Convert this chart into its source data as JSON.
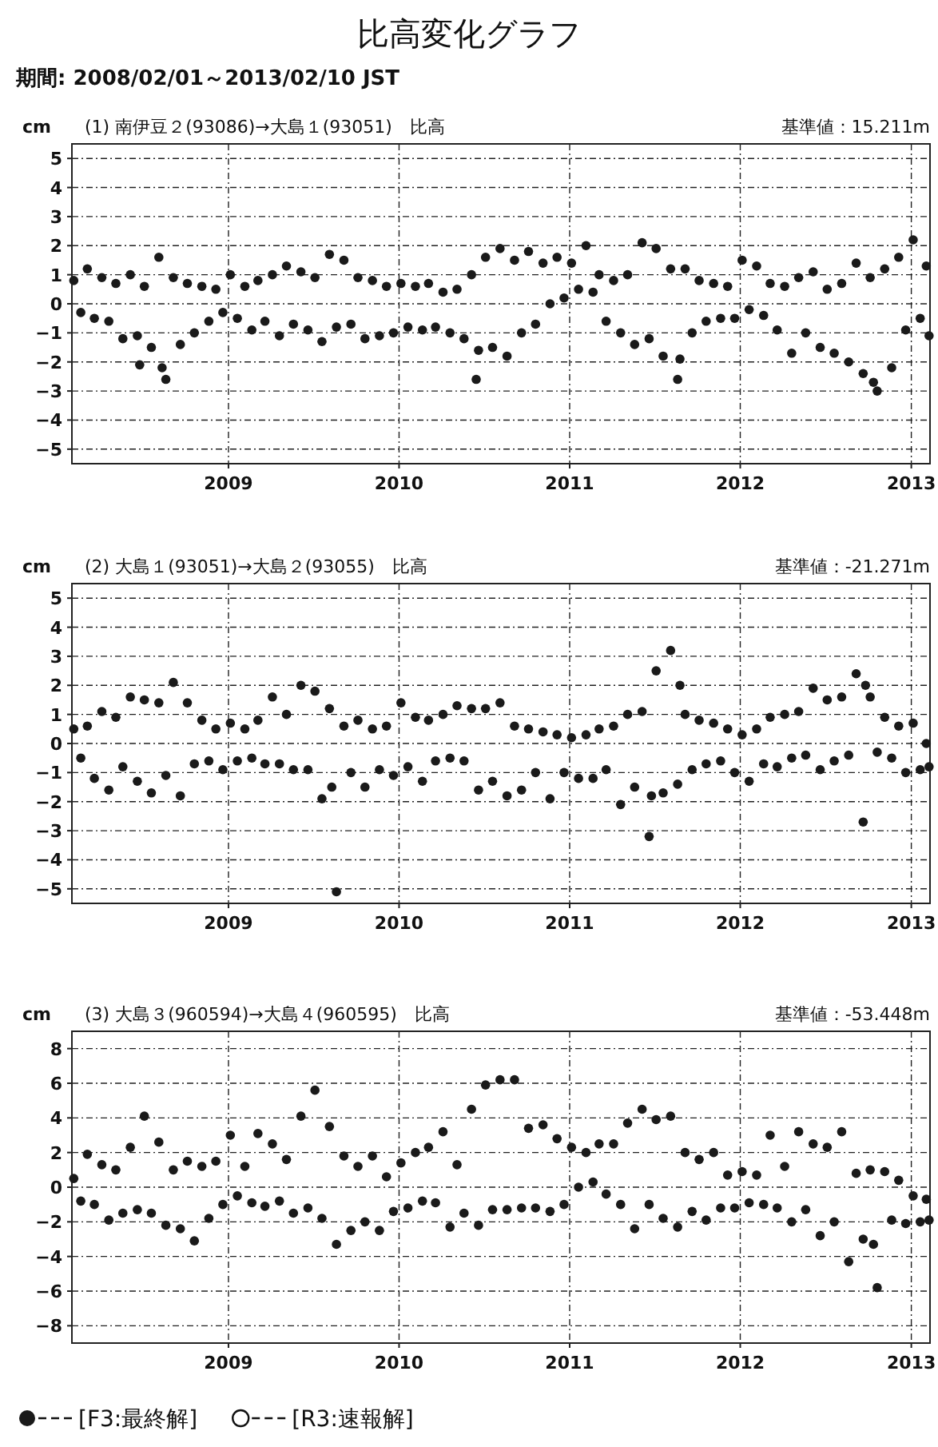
{
  "chart_data": [
    {
      "type": "scatter",
      "title": "比高変化グラフ",
      "subtitle": "期間: 2008/02/01～2013/02/10 JST",
      "ylabel": "cm",
      "annotations": [
        "(1) 南伊豆２(93086)→大島１(93051)　比高",
        "基準値：15.211m"
      ],
      "xlim": [
        "2008-02-01",
        "2013-02-10"
      ],
      "xticks": [
        {
          "value": "2009-01-01",
          "label": "2009"
        },
        {
          "value": "2010-01-01",
          "label": "2010"
        },
        {
          "value": "2011-01-01",
          "label": "2011"
        },
        {
          "value": "2012-01-01",
          "label": "2012"
        },
        {
          "value": "2013-01-01",
          "label": "2013"
        }
      ],
      "ylim": [
        -5.5,
        5.5
      ],
      "yticks": [
        -5,
        -4,
        -3,
        -2,
        -1,
        0,
        1,
        2,
        3,
        4,
        5
      ],
      "grid": true,
      "marker": "circle",
      "color": "#1a1a1a",
      "x": [
        "2008-02-05",
        "2008-02-20",
        "2008-03-05",
        "2008-03-20",
        "2008-04-05",
        "2008-04-20",
        "2008-05-05",
        "2008-05-20",
        "2008-06-05",
        "2008-06-20",
        "2008-06-25",
        "2008-07-05",
        "2008-07-20",
        "2008-08-05",
        "2008-08-12",
        "2008-08-20",
        "2008-09-05",
        "2008-09-20",
        "2008-10-05",
        "2008-10-20",
        "2008-11-05",
        "2008-11-20",
        "2008-12-05",
        "2008-12-20",
        "2009-01-05",
        "2009-01-20",
        "2009-02-05",
        "2009-02-20",
        "2009-03-05",
        "2009-03-20",
        "2009-04-05",
        "2009-04-20",
        "2009-05-05",
        "2009-05-20",
        "2009-06-05",
        "2009-06-20",
        "2009-07-05",
        "2009-07-20",
        "2009-08-05",
        "2009-08-20",
        "2009-09-05",
        "2009-09-20",
        "2009-10-05",
        "2009-10-20",
        "2009-11-05",
        "2009-11-20",
        "2009-12-05",
        "2009-12-20",
        "2010-01-05",
        "2010-01-20",
        "2010-02-05",
        "2010-02-20",
        "2010-03-05",
        "2010-03-20",
        "2010-04-05",
        "2010-04-20",
        "2010-05-05",
        "2010-05-20",
        "2010-06-05",
        "2010-06-15",
        "2010-06-20",
        "2010-07-05",
        "2010-07-20",
        "2010-08-05",
        "2010-08-20",
        "2010-09-05",
        "2010-09-20",
        "2010-10-05",
        "2010-10-20",
        "2010-11-05",
        "2010-11-20",
        "2010-12-05",
        "2010-12-20",
        "2011-01-05",
        "2011-01-20",
        "2011-02-05",
        "2011-02-20",
        "2011-03-05",
        "2011-03-20",
        "2011-04-05",
        "2011-04-20",
        "2011-05-05",
        "2011-05-20",
        "2011-06-05",
        "2011-06-20",
        "2011-07-05",
        "2011-07-20",
        "2011-08-05",
        "2011-08-20",
        "2011-08-25",
        "2011-09-05",
        "2011-09-20",
        "2011-10-05",
        "2011-10-20",
        "2011-11-05",
        "2011-11-20",
        "2011-12-05",
        "2011-12-20",
        "2012-01-05",
        "2012-01-20",
        "2012-02-05",
        "2012-02-20",
        "2012-03-05",
        "2012-03-20",
        "2012-04-05",
        "2012-04-20",
        "2012-05-05",
        "2012-05-20",
        "2012-06-05",
        "2012-06-20",
        "2012-07-05",
        "2012-07-20",
        "2012-08-05",
        "2012-08-20",
        "2012-09-05",
        "2012-09-20",
        "2012-10-05",
        "2012-10-12",
        "2012-10-20",
        "2012-11-05",
        "2012-11-20",
        "2012-12-05",
        "2012-12-20",
        "2013-01-05",
        "2013-01-20",
        "2013-02-02",
        "2013-02-08"
      ],
      "values": [
        0.8,
        -0.3,
        1.2,
        -0.5,
        0.9,
        -0.6,
        0.7,
        -1.2,
        1.0,
        -1.1,
        -2.1,
        0.6,
        -1.5,
        1.6,
        -2.2,
        -2.6,
        0.9,
        -1.4,
        0.7,
        -1.0,
        0.6,
        -0.6,
        0.5,
        -0.3,
        1.0,
        -0.5,
        0.6,
        -0.9,
        0.8,
        -0.6,
        1.0,
        -1.1,
        1.3,
        -0.7,
        1.1,
        -0.9,
        0.9,
        -1.3,
        1.7,
        -0.8,
        1.5,
        -0.7,
        0.9,
        -1.2,
        0.8,
        -1.1,
        0.6,
        -1.0,
        0.7,
        -0.8,
        0.6,
        -0.9,
        0.7,
        -0.8,
        0.4,
        -1.0,
        0.5,
        -1.2,
        1.0,
        -2.6,
        -1.6,
        1.6,
        -1.5,
        1.9,
        -1.8,
        1.5,
        -1.0,
        1.8,
        -0.7,
        1.4,
        0.0,
        1.6,
        0.2,
        1.4,
        0.5,
        2.0,
        0.4,
        1.0,
        -0.6,
        0.8,
        -1.0,
        1.0,
        -1.4,
        2.1,
        -1.2,
        1.9,
        -1.8,
        1.2,
        -2.6,
        -1.9,
        1.2,
        -1.0,
        0.8,
        -0.6,
        0.7,
        -0.5,
        0.6,
        -0.5,
        1.5,
        -0.2,
        1.3,
        -0.4,
        0.7,
        -0.9,
        0.6,
        -1.7,
        0.9,
        -1.0,
        1.1,
        -1.5,
        0.5,
        -1.7,
        0.7,
        -2.0,
        1.4,
        -2.4,
        0.9,
        -2.7,
        -3.0,
        1.2,
        -2.2,
        1.6,
        -0.9,
        2.2,
        -0.5,
        1.3,
        -1.1
      ]
    },
    {
      "type": "scatter",
      "ylabel": "cm",
      "annotations": [
        "(2) 大島１(93051)→大島２(93055)　比高",
        "基準値：-21.271m"
      ],
      "xlim": [
        "2008-02-01",
        "2013-02-10"
      ],
      "xticks": [
        {
          "value": "2009-01-01",
          "label": "2009"
        },
        {
          "value": "2010-01-01",
          "label": "2010"
        },
        {
          "value": "2011-01-01",
          "label": "2011"
        },
        {
          "value": "2012-01-01",
          "label": "2012"
        },
        {
          "value": "2013-01-01",
          "label": "2013"
        }
      ],
      "ylim": [
        -5.5,
        5.5
      ],
      "yticks": [
        -5,
        -4,
        -3,
        -2,
        -1,
        0,
        1,
        2,
        3,
        4,
        5
      ],
      "grid": true,
      "marker": "circle",
      "color": "#1a1a1a",
      "x": [
        "2008-02-05",
        "2008-02-20",
        "2008-03-05",
        "2008-03-20",
        "2008-04-05",
        "2008-04-20",
        "2008-05-05",
        "2008-05-20",
        "2008-06-05",
        "2008-06-20",
        "2008-07-05",
        "2008-07-20",
        "2008-08-05",
        "2008-08-20",
        "2008-09-05",
        "2008-09-20",
        "2008-10-05",
        "2008-10-20",
        "2008-11-05",
        "2008-11-20",
        "2008-12-05",
        "2008-12-20",
        "2009-01-05",
        "2009-01-20",
        "2009-02-05",
        "2009-02-20",
        "2009-03-05",
        "2009-03-20",
        "2009-04-05",
        "2009-04-20",
        "2009-05-05",
        "2009-05-20",
        "2009-06-05",
        "2009-06-20",
        "2009-07-05",
        "2009-07-20",
        "2009-08-05",
        "2009-08-10",
        "2009-08-20",
        "2009-09-05",
        "2009-09-20",
        "2009-10-05",
        "2009-10-20",
        "2009-11-05",
        "2009-11-20",
        "2009-12-05",
        "2009-12-20",
        "2010-01-05",
        "2010-01-20",
        "2010-02-05",
        "2010-02-20",
        "2010-03-05",
        "2010-03-20",
        "2010-04-05",
        "2010-04-20",
        "2010-05-05",
        "2010-05-20",
        "2010-06-05",
        "2010-06-20",
        "2010-07-05",
        "2010-07-20",
        "2010-08-05",
        "2010-08-20",
        "2010-09-05",
        "2010-09-20",
        "2010-10-05",
        "2010-10-20",
        "2010-11-05",
        "2010-11-20",
        "2010-12-05",
        "2010-12-20",
        "2011-01-05",
        "2011-01-20",
        "2011-02-05",
        "2011-02-20",
        "2011-03-05",
        "2011-03-20",
        "2011-04-05",
        "2011-04-20",
        "2011-05-05",
        "2011-05-20",
        "2011-06-05",
        "2011-06-20",
        "2011-06-25",
        "2011-07-05",
        "2011-07-20",
        "2011-08-05",
        "2011-08-20",
        "2011-08-25",
        "2011-09-05",
        "2011-09-20",
        "2011-10-05",
        "2011-10-20",
        "2011-11-05",
        "2011-11-20",
        "2011-12-05",
        "2011-12-20",
        "2012-01-05",
        "2012-01-20",
        "2012-02-05",
        "2012-02-20",
        "2012-03-05",
        "2012-03-20",
        "2012-04-05",
        "2012-04-20",
        "2012-05-05",
        "2012-05-20",
        "2012-06-05",
        "2012-06-20",
        "2012-07-05",
        "2012-07-20",
        "2012-08-05",
        "2012-08-20",
        "2012-09-05",
        "2012-09-20",
        "2012-09-25",
        "2012-10-05",
        "2012-10-20",
        "2012-11-05",
        "2012-11-20",
        "2012-12-05",
        "2012-12-20",
        "2013-01-05",
        "2013-01-20",
        "2013-02-02",
        "2013-02-08"
      ],
      "values": [
        0.5,
        -0.5,
        0.6,
        -1.2,
        1.1,
        -1.6,
        0.9,
        -0.8,
        1.6,
        -1.3,
        1.5,
        -1.7,
        1.4,
        -1.1,
        2.1,
        -1.8,
        1.4,
        -0.7,
        0.8,
        -0.6,
        0.5,
        -0.9,
        0.7,
        -0.6,
        0.5,
        -0.5,
        0.8,
        -0.7,
        1.6,
        -0.7,
        1.0,
        -0.9,
        2.0,
        -0.9,
        1.8,
        -1.9,
        1.2,
        -1.5,
        -5.1,
        0.6,
        -1.0,
        0.8,
        -1.5,
        0.5,
        -0.9,
        0.6,
        -1.1,
        1.4,
        -0.8,
        0.9,
        -1.3,
        0.8,
        -0.6,
        1.0,
        -0.5,
        1.3,
        -0.6,
        1.2,
        -1.6,
        1.2,
        -1.3,
        1.4,
        -1.8,
        0.6,
        -1.6,
        0.5,
        -1.0,
        0.4,
        -1.9,
        0.3,
        -1.0,
        0.2,
        -1.2,
        0.3,
        -1.2,
        0.5,
        -0.9,
        0.6,
        -2.1,
        1.0,
        -1.5,
        1.1,
        -3.2,
        -1.8,
        2.5,
        -1.7,
        3.2,
        -1.4,
        2.0,
        1.0,
        -0.9,
        0.8,
        -0.7,
        0.7,
        -0.6,
        0.5,
        -1.0,
        0.3,
        -1.3,
        0.5,
        -0.7,
        0.9,
        -0.8,
        1.0,
        -0.5,
        1.1,
        -0.4,
        1.9,
        -0.9,
        1.5,
        -0.6,
        1.6,
        -0.4,
        2.4,
        -2.7,
        2.0,
        1.6,
        -0.3,
        0.9,
        -0.5,
        0.6,
        -1.0,
        0.7,
        -0.9,
        0.0,
        -0.8
      ]
    },
    {
      "type": "scatter",
      "ylabel": "cm",
      "annotations": [
        "(3) 大島３(960594)→大島４(960595)　比高",
        "基準値：-53.448m"
      ],
      "xlim": [
        "2008-02-01",
        "2013-02-10"
      ],
      "xticks": [
        {
          "value": "2009-01-01",
          "label": "2009"
        },
        {
          "value": "2010-01-01",
          "label": "2010"
        },
        {
          "value": "2011-01-01",
          "label": "2011"
        },
        {
          "value": "2012-01-01",
          "label": "2012"
        },
        {
          "value": "2013-01-01",
          "label": "2013"
        }
      ],
      "ylim": [
        -9,
        9
      ],
      "yticks": [
        -8,
        -6,
        -4,
        -2,
        0,
        2,
        4,
        6,
        8
      ],
      "grid": true,
      "marker": "circle",
      "legend": "bottom",
      "series": [
        {
          "name": "[F3:最終解]",
          "color": "#1a1a1a",
          "x": [
            "2008-02-05",
            "2008-02-20",
            "2008-03-05",
            "2008-03-20",
            "2008-04-05",
            "2008-04-20",
            "2008-05-05",
            "2008-05-20",
            "2008-06-05",
            "2008-06-20",
            "2008-07-05",
            "2008-07-20",
            "2008-08-05",
            "2008-08-20",
            "2008-09-05",
            "2008-09-20",
            "2008-10-05",
            "2008-10-20",
            "2008-11-05",
            "2008-11-20",
            "2008-12-05",
            "2008-12-20",
            "2009-01-05",
            "2009-01-20",
            "2009-02-05",
            "2009-02-20",
            "2009-03-05",
            "2009-03-20",
            "2009-04-05",
            "2009-04-20",
            "2009-05-05",
            "2009-05-20",
            "2009-06-05",
            "2009-06-20",
            "2009-07-05",
            "2009-07-20",
            "2009-08-05",
            "2009-08-20",
            "2009-09-05",
            "2009-09-20",
            "2009-10-05",
            "2009-10-20",
            "2009-11-05",
            "2009-11-20",
            "2009-12-05",
            "2009-12-20",
            "2010-01-05",
            "2010-01-20",
            "2010-02-05",
            "2010-02-20",
            "2010-03-05",
            "2010-03-20",
            "2010-04-05",
            "2010-04-20",
            "2010-05-05",
            "2010-05-20",
            "2010-06-05",
            "2010-06-20",
            "2010-07-05",
            "2010-07-20",
            "2010-08-05",
            "2010-08-20",
            "2010-09-05",
            "2010-09-20",
            "2010-10-05",
            "2010-10-20",
            "2010-11-05",
            "2010-11-20",
            "2010-12-05",
            "2010-12-20",
            "2011-01-05",
            "2011-01-20",
            "2011-02-05",
            "2011-02-20",
            "2011-03-05",
            "2011-03-20",
            "2011-04-05",
            "2011-04-20",
            "2011-05-05",
            "2011-05-20",
            "2011-06-05",
            "2011-06-20",
            "2011-07-05",
            "2011-07-20",
            "2011-08-05",
            "2011-08-20",
            "2011-09-05",
            "2011-09-20",
            "2011-10-05",
            "2011-10-20",
            "2011-11-05",
            "2011-11-20",
            "2011-12-05",
            "2011-12-20",
            "2012-01-05",
            "2012-01-20",
            "2012-02-05",
            "2012-02-20",
            "2012-03-05",
            "2012-03-20",
            "2012-04-05",
            "2012-04-20",
            "2012-05-05",
            "2012-05-20",
            "2012-06-05",
            "2012-06-20",
            "2012-07-05",
            "2012-07-20",
            "2012-08-05",
            "2012-08-20",
            "2012-09-05",
            "2012-09-20",
            "2012-10-05",
            "2012-10-12",
            "2012-10-20",
            "2012-11-05",
            "2012-11-20",
            "2012-12-05",
            "2012-12-20",
            "2013-01-05",
            "2013-01-20",
            "2013-02-02",
            "2013-02-08"
          ],
          "values": [
            0.5,
            -0.8,
            1.9,
            -1.0,
            1.3,
            -1.9,
            1.0,
            -1.5,
            2.3,
            -1.3,
            4.1,
            -1.5,
            2.6,
            -2.2,
            1.0,
            -2.4,
            1.5,
            -3.1,
            1.2,
            -1.8,
            1.5,
            -1.0,
            3.0,
            -0.5,
            1.2,
            -0.9,
            3.1,
            -1.1,
            2.5,
            -0.8,
            1.6,
            -1.5,
            4.1,
            -1.2,
            5.6,
            -1.8,
            3.5,
            -3.3,
            1.8,
            -2.5,
            1.2,
            -2.0,
            1.8,
            -2.5,
            0.6,
            -1.4,
            1.4,
            -1.2,
            2.0,
            -0.8,
            2.3,
            -0.9,
            3.2,
            -2.3,
            1.3,
            -1.5,
            4.5,
            -2.2,
            5.9,
            -1.3,
            6.2,
            -1.3,
            6.2,
            -1.2,
            3.4,
            -1.2,
            3.6,
            -1.4,
            2.8,
            -1.0,
            2.3,
            0.0,
            2.0,
            0.3,
            2.5,
            -0.4,
            2.5,
            -1.0,
            3.7,
            -2.4,
            4.5,
            -1.0,
            3.9,
            -1.8,
            4.1,
            -2.3,
            2.0,
            -1.4,
            1.6,
            -1.9,
            2.0,
            -1.2,
            0.7,
            -1.2,
            0.9,
            -0.9,
            0.7,
            -1.0,
            3.0,
            -1.2,
            1.2,
            -2.0,
            3.2,
            -1.3,
            2.5,
            -2.8,
            2.3,
            -2.0,
            3.2,
            -4.3,
            0.8,
            -3.0,
            1.0,
            -3.3,
            -5.8,
            0.9,
            -1.9,
            0.4,
            -2.1,
            -0.5,
            -2.0,
            -0.7,
            -1.9
          ]
        },
        {
          "name": "[R3:速報解]"
        }
      ]
    }
  ]
}
